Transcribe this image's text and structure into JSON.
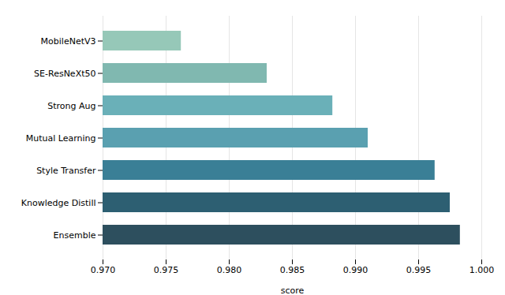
{
  "chart_data": {
    "type": "bar",
    "orientation": "horizontal",
    "categories": [
      "Ensemble",
      "Knowledge Distill",
      "Style Transfer",
      "Mutual Learning",
      "Strong Aug",
      "SE-ResNeXt50",
      "MobileNetV3"
    ],
    "values": [
      0.9983,
      0.9975,
      0.9963,
      0.991,
      0.9882,
      0.983,
      0.9762
    ],
    "colors": [
      "#2d4f5e",
      "#2d5f72",
      "#3a7f96",
      "#5aa0b0",
      "#6ab0b8",
      "#80b8b0",
      "#96c8b8"
    ],
    "xlabel": "score",
    "xlim": [
      0.97,
      1.0
    ],
    "xticks": [
      {
        "value": 0.97,
        "label": "0.970"
      },
      0.975,
      {
        "value": 0.98,
        "label": "0.980"
      },
      0.985,
      {
        "value": 0.99,
        "label": "0.990"
      },
      0.995,
      {
        "value": 1.0,
        "label": "1.000"
      }
    ],
    "grid": true
  }
}
